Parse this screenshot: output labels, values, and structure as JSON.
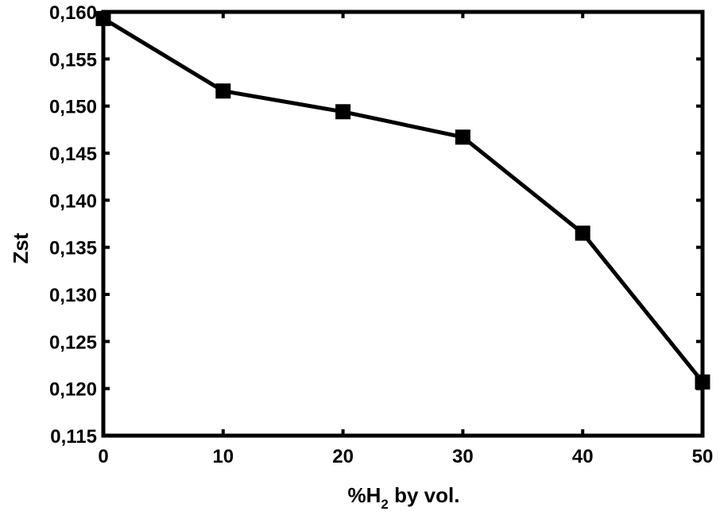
{
  "chart_data": {
    "type": "line",
    "xlabel_parts": {
      "prefix": "%H",
      "sub": "2",
      "suffix": " by vol."
    },
    "ylabel": "Zst",
    "xlim": [
      0,
      50
    ],
    "ylim": [
      0.115,
      0.16
    ],
    "x_ticks": [
      0,
      10,
      20,
      30,
      40,
      50
    ],
    "x_tick_labels": [
      "0",
      "10",
      "20",
      "30",
      "40",
      "50"
    ],
    "y_ticks": [
      0.115,
      0.12,
      0.125,
      0.13,
      0.135,
      0.14,
      0.145,
      0.15,
      0.155,
      0.16
    ],
    "y_tick_labels": [
      "0,115",
      "0,120",
      "0,125",
      "0,130",
      "0,135",
      "0,140",
      "0,145",
      "0,150",
      "0,155",
      "0,160"
    ],
    "grid": false,
    "series": [
      {
        "x": [
          0,
          10,
          20,
          30,
          40,
          50
        ],
        "y": [
          0.1593,
          0.1516,
          0.1494,
          0.1467,
          0.1365,
          0.1207
        ],
        "marker": "square",
        "color": "#000000"
      }
    ]
  }
}
